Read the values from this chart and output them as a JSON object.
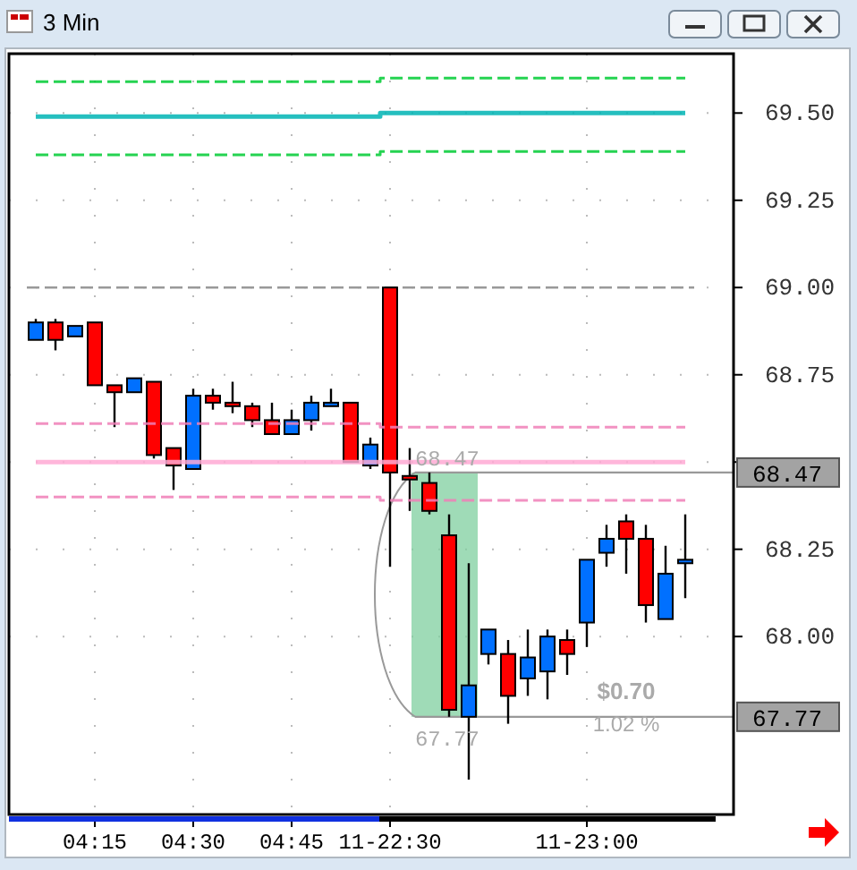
{
  "chart_data": {
    "type": "candlestick",
    "title": "3 Min",
    "categories": [
      null,
      null,
      null,
      "04:15",
      null,
      null,
      null,
      null,
      "04:30",
      null,
      null,
      null,
      null,
      "04:45",
      null,
      null,
      null,
      null,
      "11-22:30",
      null,
      null,
      null,
      null,
      null,
      null,
      null,
      null,
      null,
      "11-23:00",
      null,
      null,
      null,
      null,
      null
    ],
    "ohlc": [
      [
        68.85,
        68.91,
        68.85,
        68.9
      ],
      [
        68.9,
        68.91,
        68.82,
        68.85
      ],
      [
        68.86,
        68.89,
        68.86,
        68.89
      ],
      [
        68.9,
        68.9,
        68.72,
        68.72
      ],
      [
        68.72,
        68.72,
        68.6,
        68.7
      ],
      [
        68.7,
        68.74,
        68.7,
        68.74
      ],
      [
        68.73,
        68.73,
        68.51,
        68.52
      ],
      [
        68.54,
        68.54,
        68.42,
        68.49
      ],
      [
        68.48,
        68.71,
        68.48,
        68.69
      ],
      [
        68.69,
        68.71,
        68.65,
        68.67
      ],
      [
        68.67,
        68.73,
        68.64,
        68.66
      ],
      [
        68.66,
        68.67,
        68.6,
        68.62
      ],
      [
        68.62,
        68.67,
        68.58,
        68.58
      ],
      [
        68.58,
        68.65,
        68.58,
        68.62
      ],
      [
        68.62,
        68.69,
        68.59,
        68.67
      ],
      [
        68.66,
        68.71,
        68.66,
        68.67
      ],
      [
        68.67,
        68.67,
        68.5,
        68.5
      ],
      [
        68.49,
        68.57,
        68.48,
        68.55
      ],
      [
        69.0,
        69.0,
        68.2,
        68.47
      ],
      [
        68.46,
        68.54,
        68.36,
        68.45
      ],
      [
        68.44,
        68.47,
        68.35,
        68.36
      ],
      [
        68.29,
        68.35,
        67.77,
        67.79
      ],
      [
        67.77,
        68.21,
        67.59,
        67.86
      ],
      [
        67.95,
        68.02,
        67.92,
        68.02
      ],
      [
        67.95,
        67.99,
        67.75,
        67.83
      ],
      [
        67.88,
        68.02,
        67.83,
        67.94
      ],
      [
        67.9,
        68.02,
        67.82,
        68.0
      ],
      [
        67.99,
        68.02,
        67.89,
        67.95
      ],
      [
        68.04,
        68.22,
        67.97,
        68.22
      ],
      [
        68.24,
        68.32,
        68.2,
        68.28
      ],
      [
        68.33,
        68.35,
        68.18,
        68.28
      ],
      [
        68.28,
        68.32,
        68.04,
        68.09
      ],
      [
        68.05,
        68.26,
        68.05,
        68.18
      ],
      [
        68.21,
        68.35,
        68.11,
        68.22
      ]
    ],
    "colors": [
      "#0070ff",
      "#ff0000",
      "#0070ff",
      "#ff0000",
      "#ff0000",
      "#0070ff",
      "#ff0000",
      "#ff0000",
      "#0070ff",
      "#ff0000",
      "#ff0000",
      "#ff0000",
      "#ff0000",
      "#0070ff",
      "#0070ff",
      "#0070ff",
      "#ff0000",
      "#0070ff",
      "#ff0000",
      "#ff0000",
      "#ff0000",
      "#ff0000",
      "#0070ff",
      "#0070ff",
      "#ff0000",
      "#0070ff",
      "#0070ff",
      "#ff0000",
      "#0070ff",
      "#0070ff",
      "#ff0000",
      "#ff0000",
      "#0070ff",
      "#0070ff"
    ],
    "series": [
      {
        "type": "step",
        "color": "#00cc33",
        "line_style": "dashed",
        "values": [
          69.59,
          69.59,
          69.59,
          69.59,
          69.59,
          69.59,
          69.59,
          69.59,
          69.59,
          69.59,
          69.59,
          69.59,
          69.59,
          69.59,
          69.59,
          69.59,
          69.59,
          69.59,
          69.6,
          69.6,
          69.6,
          69.6,
          69.6,
          69.6,
          69.6,
          69.6,
          69.6,
          69.6,
          69.6,
          69.6,
          69.6,
          69.6,
          69.6,
          69.6
        ]
      },
      {
        "type": "step",
        "color": "#00b4b4",
        "line_style": "solid",
        "values": [
          69.49,
          69.49,
          69.49,
          69.49,
          69.49,
          69.49,
          69.49,
          69.49,
          69.49,
          69.49,
          69.49,
          69.49,
          69.49,
          69.49,
          69.49,
          69.49,
          69.49,
          69.49,
          69.5,
          69.5,
          69.5,
          69.5,
          69.5,
          69.5,
          69.5,
          69.5,
          69.5,
          69.5,
          69.5,
          69.5,
          69.5,
          69.5,
          69.5,
          69.5
        ]
      },
      {
        "type": "step",
        "color": "#00cc33",
        "line_style": "dashed",
        "values": [
          69.38,
          69.38,
          69.38,
          69.38,
          69.38,
          69.38,
          69.38,
          69.38,
          69.38,
          69.38,
          69.38,
          69.38,
          69.38,
          69.38,
          69.38,
          69.38,
          69.38,
          69.38,
          69.39,
          69.39,
          69.39,
          69.39,
          69.39,
          69.39,
          69.39,
          69.39,
          69.39,
          69.39,
          69.39,
          69.39,
          69.39,
          69.39,
          69.39,
          69.39
        ]
      },
      {
        "type": "step",
        "color": "#f080b8",
        "line_style": "dashed",
        "values": [
          68.61,
          68.61,
          68.61,
          68.61,
          68.61,
          68.61,
          68.61,
          68.61,
          68.61,
          68.61,
          68.61,
          68.61,
          68.61,
          68.61,
          68.61,
          68.61,
          68.61,
          68.61,
          68.6,
          68.6,
          68.6,
          68.6,
          68.6,
          68.6,
          68.6,
          68.6,
          68.6,
          68.6,
          68.6,
          68.6,
          68.6,
          68.6,
          68.6,
          68.6
        ]
      },
      {
        "type": "step",
        "color": "#ffaad4",
        "line_style": "solid",
        "values": [
          68.5,
          68.5,
          68.5,
          68.5,
          68.5,
          68.5,
          68.5,
          68.5,
          68.5,
          68.5,
          68.5,
          68.5,
          68.5,
          68.5,
          68.5,
          68.5,
          68.5,
          68.5,
          68.5,
          68.5,
          68.5,
          68.5,
          68.5,
          68.5,
          68.5,
          68.5,
          68.5,
          68.5,
          68.5,
          68.5,
          68.5,
          68.5,
          68.5,
          68.5
        ]
      },
      {
        "type": "step",
        "color": "#f080b8",
        "line_style": "dashed",
        "values": [
          68.4,
          68.4,
          68.4,
          68.4,
          68.4,
          68.4,
          68.4,
          68.4,
          68.4,
          68.4,
          68.4,
          68.4,
          68.4,
          68.4,
          68.4,
          68.4,
          68.4,
          68.4,
          68.39,
          68.39,
          68.39,
          68.39,
          68.39,
          68.39,
          68.39,
          68.39,
          68.39,
          68.39,
          68.39,
          68.39,
          68.39,
          68.39,
          68.39,
          68.39
        ]
      }
    ],
    "ylim": [
      67.49,
      69.67
    ],
    "yticks": [
      {
        "value": 69.5,
        "label": "69.50"
      },
      69.25,
      {
        "value": 69.0,
        "label": "69.00"
      },
      68.75,
      {
        "value": 68.5,
        "label": null
      },
      68.25,
      {
        "value": 68.0,
        "label": "68.00"
      }
    ],
    "grid": true,
    "ref_lines": [
      {
        "axis": "y",
        "value": 69.0,
        "color": "#999999",
        "line_style": "dashed"
      },
      {
        "axis": "y",
        "value": 68.47,
        "label": "68.47",
        "color": "#999999",
        "line_style": "solid"
      },
      {
        "axis": "y",
        "value": 67.77,
        "label": "67.77",
        "color": "#999999",
        "line_style": "solid"
      }
    ],
    "annotations": [
      {
        "text": "68.47",
        "y": 68.47
      },
      {
        "text": "67.77",
        "y": 67.77
      },
      "$0.70",
      "1.02 %"
    ]
  }
}
